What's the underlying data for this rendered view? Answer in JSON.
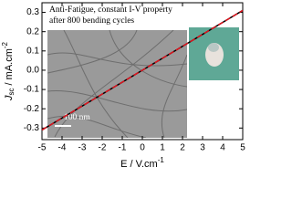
{
  "chart_data": {
    "type": "line",
    "annotations": [
      "Anti-Fatigue, constant I-V property",
      "after 800 bending cycles",
      "100 nm"
    ],
    "xlabel": {
      "main": "E / V.cm",
      "sup": "-1"
    },
    "ylabel": {
      "main": "J",
      "sub": "sc",
      "rest": " / mA.cm",
      "sup": "-2"
    },
    "x": [
      -5,
      5
    ],
    "series": [
      {
        "color": "#000000",
        "dash": "solid",
        "values": [
          -0.31,
          0.31
        ]
      },
      {
        "color": "#e0141e",
        "dash": "dashed",
        "values": [
          -0.31,
          0.31
        ]
      }
    ],
    "xlim": [
      -5,
      5
    ],
    "xticks": [
      -5,
      -4,
      -3,
      -2,
      -1,
      0,
      1,
      2,
      3,
      4,
      5
    ],
    "ylim": [
      -0.36,
      0.35
    ],
    "yticks": [
      0.3,
      0.2,
      0.1,
      {
        "value": 0,
        "label": "0.0"
      },
      -0.1,
      -0.2,
      -0.3
    ]
  }
}
